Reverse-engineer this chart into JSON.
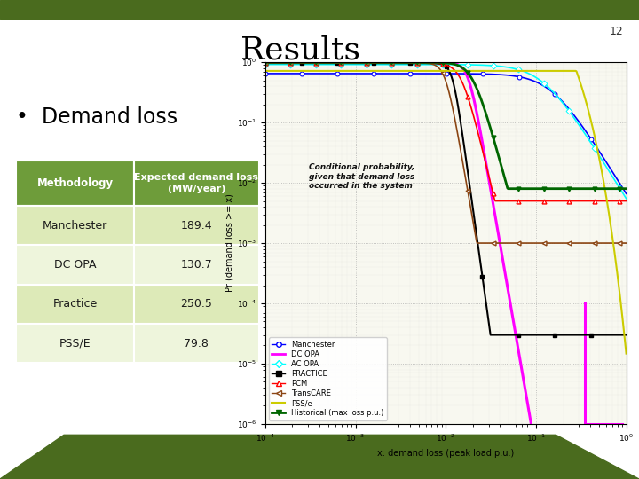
{
  "title": "Results",
  "slide_number": "12",
  "bullet": "Demand loss",
  "table": {
    "headers": [
      "Methodology",
      "Expected demand loss\n(MW/year)"
    ],
    "rows": [
      [
        "Manchester",
        "189.4"
      ],
      [
        "DC OPA",
        "130.7"
      ],
      [
        "Practice",
        "250.5"
      ],
      [
        "PSS/E",
        "79.8"
      ]
    ],
    "header_bg": "#6e9c3a",
    "header_fg": "#ffffff",
    "row_bg_even": "#ddeab8",
    "row_bg_odd": "#eef5dc",
    "border_color": "#7aaa40"
  },
  "bg_color": "#ffffff",
  "top_bar_color": "#4a6b1e",
  "bottom_bar_color": "#4a6b1e",
  "title_color": "#000000",
  "slide_num_color": "#555555",
  "annotation": "Conditional probability,\ngiven that demand loss\noccurred in the system",
  "xlabel": "x: demand loss (peak load p.u.)",
  "ylabel": "Pr (demand loss >= x)",
  "legend_entries": [
    "Manchester",
    "DC OPA",
    "AC OPA",
    "PRACTICE",
    "PCM",
    "TransCARE",
    "PSS/e",
    "Historical (max loss p.u.)"
  ]
}
